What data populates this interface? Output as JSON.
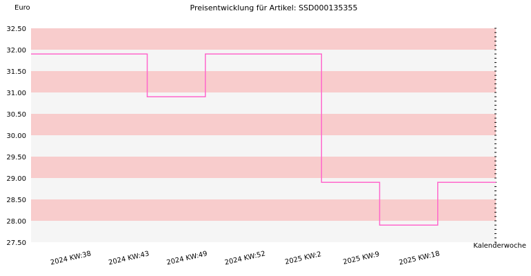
{
  "chart_data": {
    "type": "line",
    "title": "Preisentwicklung für Artikel: SSD000135355",
    "ylabel": "Euro",
    "xlabel": "Kalenderwoche",
    "ylim": [
      27.5,
      32.5
    ],
    "y_ticks": [
      "32.50",
      "32.00",
      "31.50",
      "31.00",
      "30.50",
      "30.00",
      "29.50",
      "29.00",
      "28.50",
      "28.00",
      "27.50"
    ],
    "x_ticks": [
      "2024 KW:38",
      "2024 KW:43",
      "2024 KW:49",
      "2024 KW:52",
      "2025 KW:2",
      "2025 KW:9",
      "2025 KW:18"
    ],
    "step": true,
    "series": [
      {
        "values": [
          31.9,
          31.9,
          30.9,
          31.9,
          31.9,
          28.9,
          27.9,
          28.9
        ]
      }
    ],
    "line_color": "#ff66cc",
    "band_colors": [
      "#f8cccc",
      "#f5f5f5"
    ],
    "grid": false
  }
}
